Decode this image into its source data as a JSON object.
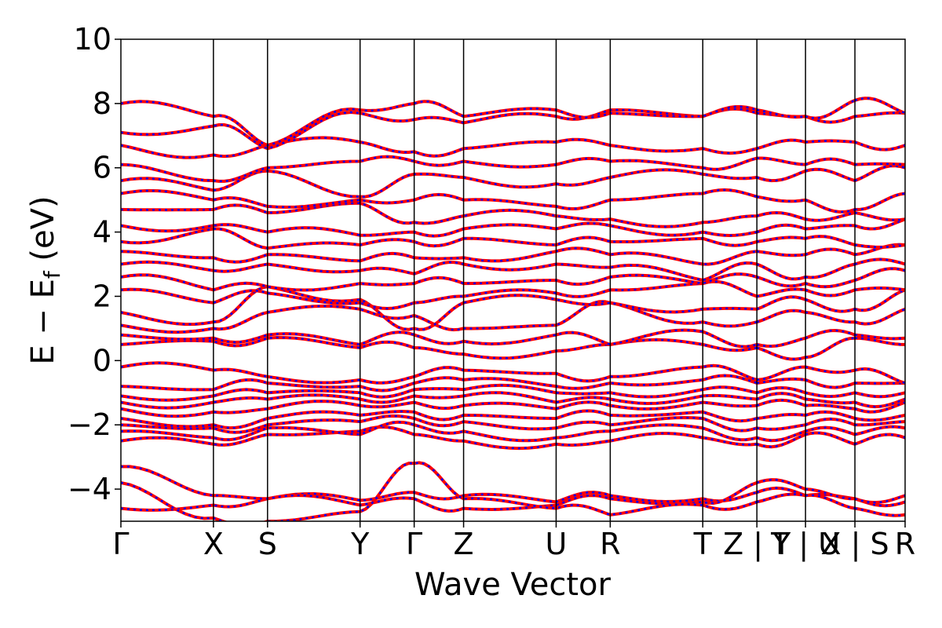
{
  "chart_data": {
    "type": "line",
    "xlabel": "Wave Vector",
    "ylabel": "E − E",
    "ylabel_sub": "f",
    "ylabel_unit": " (eV)",
    "ylim": [
      -5,
      10
    ],
    "yticks": [
      -4,
      -2,
      0,
      2,
      4,
      6,
      8,
      10
    ],
    "ytick_labels": [
      "−4",
      "−2",
      "0",
      "2",
      "4",
      "6",
      "8",
      "10"
    ],
    "xlim": [
      0,
      10
    ],
    "grid": false,
    "kpoints": [
      {
        "x": 0.0,
        "label": "Γ"
      },
      {
        "x": 1.18,
        "label": "X"
      },
      {
        "x": 1.87,
        "label": "S"
      },
      {
        "x": 3.05,
        "label": "Y"
      },
      {
        "x": 3.74,
        "label": "Γ"
      },
      {
        "x": 4.37,
        "label": "Z"
      },
      {
        "x": 5.55,
        "label": "U"
      },
      {
        "x": 6.24,
        "label": "R"
      },
      {
        "x": 7.42,
        "label": "T"
      },
      {
        "x": 8.11,
        "label": "Z | Y"
      },
      {
        "x": 8.73,
        "label": "T | U"
      },
      {
        "x": 9.36,
        "label": "X | S"
      },
      {
        "x": 10.0,
        "label": "R"
      }
    ],
    "band_discontinuities_at": [
      8.11,
      8.73,
      9.36
    ],
    "series": [
      {
        "name": "",
        "color": "#ff0000",
        "style": "solid"
      },
      {
        "name": "",
        "color": "#0000ff",
        "style": "dotted"
      }
    ],
    "bands": [
      [
        -4.6,
        -4.5,
        -4.3,
        -4.35,
        -4.1,
        -4.2,
        -4.4,
        -4.2,
        -4.3,
        -4.1,
        -4.2,
        -4.3,
        -4.4
      ],
      [
        -3.3,
        -4.2,
        -4.3,
        -4.5,
        -4.3,
        -4.6,
        -4.5,
        -4.3,
        -4.4,
        -3.8,
        -4.0,
        -4.3,
        -4.2
      ],
      [
        -3.8,
        -4.9,
        -5.0,
        -4.7,
        -3.2,
        -4.3,
        -4.6,
        -4.8,
        -4.5,
        -4.4,
        -4.2,
        -4.6,
        -4.8
      ],
      [
        -2.5,
        -2.6,
        -2.3,
        -2.2,
        -2.3,
        -2.5,
        -2.6,
        -2.5,
        -2.4,
        -2.6,
        -2.3,
        -2.6,
        -2.4
      ],
      [
        -2.2,
        -2.4,
        -2.1,
        -2.3,
        -2.0,
        -2.2,
        -2.4,
        -2.2,
        -2.1,
        -2.4,
        -2.2,
        -2.3,
        -2.1
      ],
      [
        -2.0,
        -2.1,
        -2.0,
        -1.9,
        -1.8,
        -1.9,
        -2.1,
        -2.0,
        -1.8,
        -2.1,
        -2.0,
        -2.0,
        -1.9
      ],
      [
        -1.8,
        -2.0,
        -1.8,
        -1.7,
        -1.6,
        -1.7,
        -1.8,
        -1.7,
        -1.6,
        -1.8,
        -1.7,
        -1.8,
        -1.7
      ],
      [
        -1.5,
        -1.6,
        -1.5,
        -1.4,
        -1.3,
        -1.4,
        -1.5,
        -1.4,
        -1.3,
        -1.4,
        -1.4,
        -1.5,
        -1.3
      ],
      [
        -1.3,
        -1.3,
        -1.2,
        -1.2,
        -1.1,
        -1.1,
        -1.3,
        -1.2,
        -1.1,
        -1.2,
        -1.2,
        -1.3,
        -1.2
      ],
      [
        -1.1,
        -1.1,
        -1.0,
        -1.0,
        -0.9,
        -0.9,
        -1.0,
        -1.0,
        -0.9,
        -1.0,
        -1.0,
        -1.0,
        -1.0
      ],
      [
        -0.8,
        -0.9,
        -0.7,
        -0.8,
        -0.7,
        -0.6,
        -0.8,
        -0.7,
        -0.6,
        -0.7,
        -0.6,
        -0.7,
        -0.7
      ],
      [
        -0.2,
        -0.3,
        -0.5,
        -0.6,
        -0.5,
        -0.3,
        -0.4,
        -0.5,
        -0.2,
        -0.6,
        -0.2,
        -0.3,
        -0.7
      ],
      [
        0.5,
        0.6,
        0.7,
        0.4,
        0.4,
        0.2,
        0.3,
        0.5,
        0.5,
        0.4,
        0.1,
        0.7,
        0.5
      ],
      [
        0.8,
        0.7,
        0.8,
        0.5,
        0.8,
        0.6,
        0.8,
        0.5,
        0.9,
        0.5,
        0.7,
        0.8,
        0.7
      ],
      [
        1.1,
        1.0,
        1.5,
        1.6,
        1.4,
        1.0,
        1.1,
        1.8,
        1.2,
        1.2,
        1.5,
        1.2,
        1.6
      ],
      [
        1.5,
        1.2,
        2.3,
        1.9,
        1.0,
        1.8,
        1.9,
        1.8,
        1.6,
        1.6,
        1.9,
        1.6,
        2.2
      ],
      [
        2.2,
        1.8,
        2.1,
        1.8,
        1.8,
        2.0,
        2.1,
        2.2,
        2.4,
        2.0,
        2.2,
        2.2,
        2.2
      ],
      [
        2.6,
        2.2,
        2.3,
        2.4,
        2.4,
        2.4,
        2.5,
        2.6,
        2.4,
        2.6,
        2.4,
        2.5,
        2.8
      ],
      [
        3.0,
        2.8,
        3.0,
        2.8,
        2.7,
        3.0,
        3.0,
        2.9,
        2.5,
        3.0,
        2.6,
        3.0,
        3.0
      ],
      [
        3.4,
        3.2,
        3.3,
        3.1,
        3.2,
        3.2,
        3.4,
        3.3,
        3.0,
        3.4,
        3.3,
        3.3,
        3.6
      ],
      [
        3.7,
        4.1,
        3.5,
        3.6,
        3.7,
        3.8,
        3.6,
        3.7,
        3.8,
        3.7,
        3.8,
        3.6,
        3.6
      ],
      [
        4.2,
        4.2,
        4.0,
        3.9,
        4.0,
        4.1,
        4.1,
        4.2,
        4.0,
        4.0,
        4.1,
        4.2,
        4.4
      ],
      [
        4.7,
        4.7,
        4.6,
        4.9,
        4.3,
        4.5,
        4.5,
        4.4,
        4.3,
        4.5,
        4.4,
        4.6,
        4.4
      ],
      [
        5.2,
        5.0,
        4.8,
        5.0,
        5.0,
        5.0,
        4.8,
        5.0,
        5.2,
        5.1,
        5.0,
        4.7,
        5.2
      ],
      [
        5.6,
        5.3,
        5.9,
        5.1,
        5.8,
        5.7,
        5.5,
        5.7,
        5.8,
        5.7,
        5.9,
        5.6,
        6.0
      ],
      [
        6.1,
        5.6,
        6.0,
        6.2,
        6.2,
        6.2,
        6.1,
        6.2,
        6.0,
        6.3,
        6.1,
        6.1,
        6.1
      ],
      [
        6.7,
        6.4,
        6.7,
        6.8,
        6.5,
        6.6,
        6.8,
        6.7,
        6.6,
        6.6,
        6.8,
        6.8,
        6.7
      ],
      [
        7.1,
        7.3,
        6.6,
        7.7,
        7.5,
        7.4,
        7.6,
        7.8,
        7.6,
        7.7,
        7.6,
        7.6,
        7.7
      ],
      [
        8.0,
        7.6,
        6.7,
        7.8,
        8.0,
        7.6,
        7.8,
        7.7,
        7.6,
        7.8,
        7.6,
        8.1,
        7.7
      ]
    ]
  }
}
